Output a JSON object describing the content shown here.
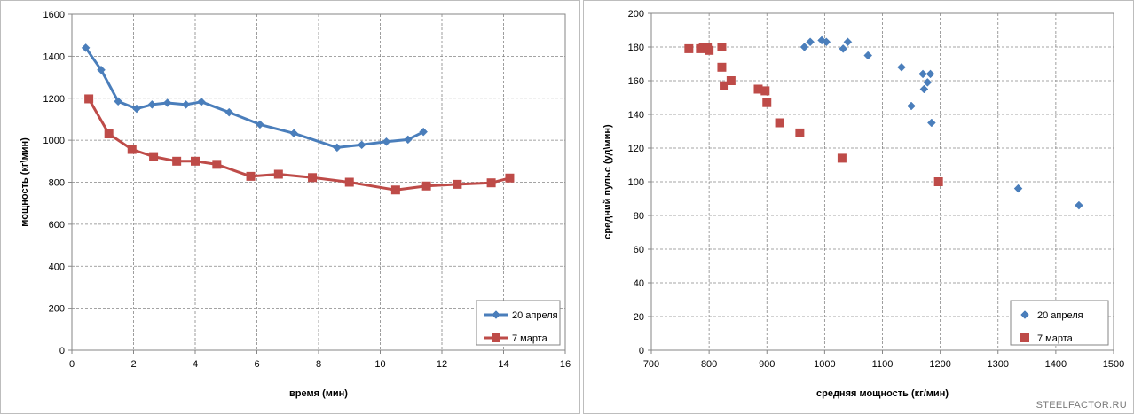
{
  "chart_data": [
    {
      "type": "line",
      "xlabel": "время (мин)",
      "ylabel": "мощность (кг\\мин)",
      "xlim": [
        0,
        16
      ],
      "ylim": [
        0,
        1600
      ],
      "xticks": [
        0,
        2,
        4,
        6,
        8,
        10,
        12,
        14,
        16
      ],
      "yticks": [
        0,
        200,
        400,
        600,
        800,
        1000,
        1200,
        1400,
        1600
      ],
      "grid": true,
      "legend": "bottom-right",
      "series": [
        {
          "name": "20 апреля",
          "color": "#4a7ebb",
          "marker": "diamond",
          "points": [
            [
              0.45,
              1440
            ],
            [
              0.95,
              1335
            ],
            [
              1.5,
              1185
            ],
            [
              2.1,
              1150
            ],
            [
              2.6,
              1170
            ],
            [
              3.1,
              1178
            ],
            [
              3.7,
              1170
            ],
            [
              4.2,
              1183
            ],
            [
              5.1,
              1133
            ],
            [
              6.1,
              1075
            ],
            [
              7.2,
              1033
            ],
            [
              8.6,
              965
            ],
            [
              9.4,
              978
            ],
            [
              10.2,
              993
            ],
            [
              10.9,
              1003
            ],
            [
              11.4,
              1040
            ]
          ]
        },
        {
          "name": "7 марта",
          "color": "#be4b48",
          "marker": "square",
          "points": [
            [
              0.55,
              1197
            ],
            [
              1.2,
              1030
            ],
            [
              1.95,
              956
            ],
            [
              2.65,
              922
            ],
            [
              3.4,
              900
            ],
            [
              4.0,
              900
            ],
            [
              4.7,
              885
            ],
            [
              5.8,
              828
            ],
            [
              6.7,
              838
            ],
            [
              7.8,
              822
            ],
            [
              9.0,
              800
            ],
            [
              10.5,
              763
            ],
            [
              11.5,
              782
            ],
            [
              12.5,
              790
            ],
            [
              13.6,
              797
            ],
            [
              14.2,
              820
            ]
          ]
        }
      ]
    },
    {
      "type": "scatter",
      "xlabel": "средняя мощность (кг/мин)",
      "ylabel": "средний пульс (уд\\мин)",
      "xlim": [
        700,
        1500
      ],
      "ylim": [
        0,
        200
      ],
      "xticks": [
        700,
        800,
        900,
        1000,
        1100,
        1200,
        1300,
        1400,
        1500
      ],
      "yticks": [
        0,
        20,
        40,
        60,
        80,
        100,
        120,
        140,
        160,
        180,
        200
      ],
      "grid": true,
      "legend": "bottom-right",
      "series": [
        {
          "name": "20 апреля",
          "color": "#4a7ebb",
          "marker": "diamond",
          "points": [
            [
              965,
              180
            ],
            [
              975,
              183
            ],
            [
              995,
              184
            ],
            [
              1003,
              183
            ],
            [
              1032,
              179
            ],
            [
              1040,
              183
            ],
            [
              1075,
              175
            ],
            [
              1133,
              168
            ],
            [
              1150,
              145
            ],
            [
              1170,
              164
            ],
            [
              1172,
              155
            ],
            [
              1178,
              159
            ],
            [
              1183,
              164
            ],
            [
              1185,
              135
            ],
            [
              1335,
              96
            ],
            [
              1440,
              86
            ]
          ]
        },
        {
          "name": "7 марта",
          "color": "#be4b48",
          "marker": "square",
          "points": [
            [
              765,
              179
            ],
            [
              785,
              179
            ],
            [
              790,
              180
            ],
            [
              797,
              180
            ],
            [
              800,
              178
            ],
            [
              822,
              180
            ],
            [
              822,
              168
            ],
            [
              826,
              157
            ],
            [
              838,
              160
            ],
            [
              885,
              155
            ],
            [
              897,
              154
            ],
            [
              900,
              147
            ],
            [
              922,
              135
            ],
            [
              957,
              129
            ],
            [
              1030,
              114
            ],
            [
              1197,
              100
            ]
          ]
        }
      ]
    }
  ],
  "watermark": "STEELFACTOR.RU"
}
